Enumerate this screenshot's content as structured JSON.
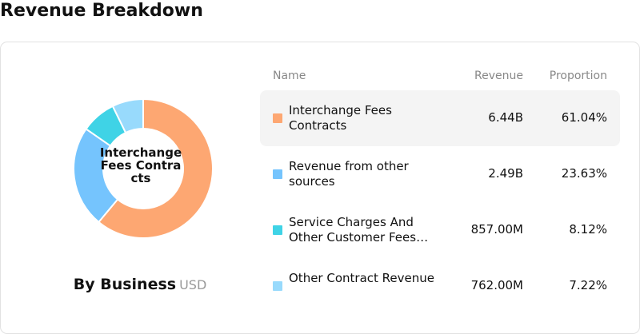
{
  "title": "Revenue Breakdown",
  "chart_data": {
    "type": "pie",
    "categories": [
      "Interchange Fees Contracts",
      "Revenue from other sources",
      "Service Charges And Other Customer Fees…",
      "Other Contract Revenue"
    ],
    "values": [
      61.04,
      23.63,
      8.12,
      7.22
    ],
    "value_labels": [
      "61.04%",
      "23.63%",
      "8.12%",
      "7.22%"
    ],
    "colors": [
      "#fda772",
      "#75c4fd",
      "#3fd3e6",
      "#98dafc"
    ],
    "title": "By Business",
    "unit": "USD"
  },
  "table": {
    "columns": [
      "Name",
      "Revenue",
      "Proportion"
    ],
    "revenue": [
      "6.44B",
      "2.49B",
      "857.00M",
      "762.00M"
    ]
  }
}
